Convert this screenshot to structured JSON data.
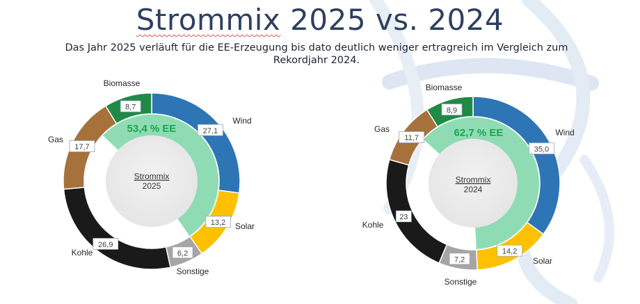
{
  "title": "Strommix 2025 vs. 2024",
  "title_underlined": "Strommix",
  "title_rest": " 2025 vs. 2024",
  "subtitle_line1": "Das Jahr 2025 verläuft für die EE-Erzeugung bis dato deutlich weniger ertragreich im Vergleich zum",
  "subtitle_line2": "Rekordjahr 2024.",
  "colors": {
    "Wind": "#2e75b6",
    "Solar": "#ffc000",
    "Sonstige": "#a5a5a5",
    "Kohle": "#1a1a1a",
    "Gas": "#a6713b",
    "Biomasse": "#1f8a45",
    "EE": "#8fdcb4",
    "EE_text": "#1aa64f",
    "title": "#2f3f5f"
  },
  "chart_data": [
    {
      "type": "pie",
      "variant": "donut",
      "center_label_line1": "Strommix",
      "center_label_line2": "2025",
      "ee_label": "53,4 % EE",
      "ee_share_percent": 53.4,
      "categories": [
        "Wind",
        "Solar",
        "Sonstige",
        "Kohle",
        "Gas",
        "Biomasse"
      ],
      "values": [
        27.1,
        13.2,
        6.2,
        26.9,
        17.7,
        8.7
      ],
      "value_labels": [
        "27,1",
        "13,2",
        "6,2",
        "26,9",
        "17,7",
        "8,7"
      ]
    },
    {
      "type": "pie",
      "variant": "donut",
      "center_label_line1": "Strommix",
      "center_label_line2": "2024",
      "ee_label": "62,7 % EE",
      "ee_share_percent": 62.7,
      "categories": [
        "Wind",
        "Solar",
        "Sonstige",
        "Kohle",
        "Gas",
        "Biomasse"
      ],
      "values": [
        35.0,
        14.2,
        7.2,
        23,
        11.7,
        8.9
      ],
      "value_labels": [
        "35,0",
        "14,2",
        "7,2",
        "23",
        "11,7",
        "8,9"
      ]
    }
  ]
}
